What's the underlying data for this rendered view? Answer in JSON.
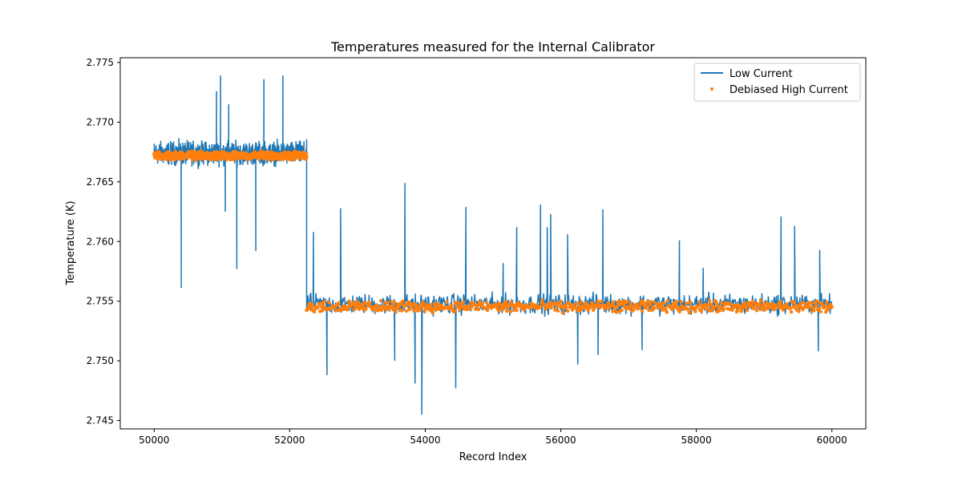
{
  "chart_data": {
    "type": "line",
    "title": "Temperatures measured for the Internal Calibrator",
    "xlabel": "Record Index",
    "ylabel": "Temperature (K)",
    "xlim": [
      49500,
      60500
    ],
    "ylim": [
      2.7443,
      2.7754
    ],
    "x_ticks": [
      50000,
      52000,
      54000,
      56000,
      58000,
      60000
    ],
    "x_tick_labels": [
      "50000",
      "52000",
      "54000",
      "56000",
      "58000",
      "60000"
    ],
    "y_ticks": [
      2.745,
      2.75,
      2.755,
      2.76,
      2.765,
      2.77,
      2.775
    ],
    "y_tick_labels": [
      "2.745",
      "2.750",
      "2.755",
      "2.760",
      "2.765",
      "2.770",
      "2.775"
    ],
    "grid": false,
    "legend_position": "upper right",
    "colors": {
      "low_current": "#1f77b4",
      "high_current": "#ff7f0e"
    },
    "series": [
      {
        "name": "Low Current",
        "style": "line",
        "segments": [
          {
            "x_start": 50000,
            "x_end": 52250,
            "mean": 2.7673,
            "low": 2.766,
            "high": 2.7688
          },
          {
            "x_start": 52250,
            "x_end": 60000,
            "mean": 2.7549,
            "low": 2.7535,
            "high": 2.756
          }
        ],
        "spikes": [
          {
            "x": 50400,
            "y": 2.7561
          },
          {
            "x": 50920,
            "y": 2.7726
          },
          {
            "x": 50980,
            "y": 2.7739
          },
          {
            "x": 51050,
            "y": 2.7625
          },
          {
            "x": 51100,
            "y": 2.7715
          },
          {
            "x": 51220,
            "y": 2.7577
          },
          {
            "x": 51500,
            "y": 2.7592
          },
          {
            "x": 51620,
            "y": 2.7736
          },
          {
            "x": 51900,
            "y": 2.7739
          },
          {
            "x": 52350,
            "y": 2.7608
          },
          {
            "x": 52550,
            "y": 2.7488
          },
          {
            "x": 52750,
            "y": 2.7628
          },
          {
            "x": 53550,
            "y": 2.75
          },
          {
            "x": 53700,
            "y": 2.7649
          },
          {
            "x": 53850,
            "y": 2.7481
          },
          {
            "x": 53950,
            "y": 2.7455
          },
          {
            "x": 54450,
            "y": 2.7477
          },
          {
            "x": 54600,
            "y": 2.7629
          },
          {
            "x": 55150,
            "y": 2.7582
          },
          {
            "x": 55350,
            "y": 2.7612
          },
          {
            "x": 55700,
            "y": 2.7631
          },
          {
            "x": 55800,
            "y": 2.7612
          },
          {
            "x": 55850,
            "y": 2.7623
          },
          {
            "x": 56100,
            "y": 2.7606
          },
          {
            "x": 56250,
            "y": 2.7497
          },
          {
            "x": 56550,
            "y": 2.7505
          },
          {
            "x": 56620,
            "y": 2.7627
          },
          {
            "x": 57200,
            "y": 2.7509
          },
          {
            "x": 57750,
            "y": 2.7601
          },
          {
            "x": 58100,
            "y": 2.7578
          },
          {
            "x": 59250,
            "y": 2.7621
          },
          {
            "x": 59450,
            "y": 2.7613
          },
          {
            "x": 59800,
            "y": 2.7508
          },
          {
            "x": 59820,
            "y": 2.7593
          }
        ]
      },
      {
        "name": "Debiased High Current",
        "style": "points",
        "segments": [
          {
            "x_start": 50000,
            "x_end": 52250,
            "mean": 2.7672,
            "low": 2.7668,
            "high": 2.7676
          },
          {
            "x_start": 52250,
            "x_end": 60000,
            "mean": 2.7546,
            "low": 2.754,
            "high": 2.7551
          }
        ]
      }
    ]
  }
}
